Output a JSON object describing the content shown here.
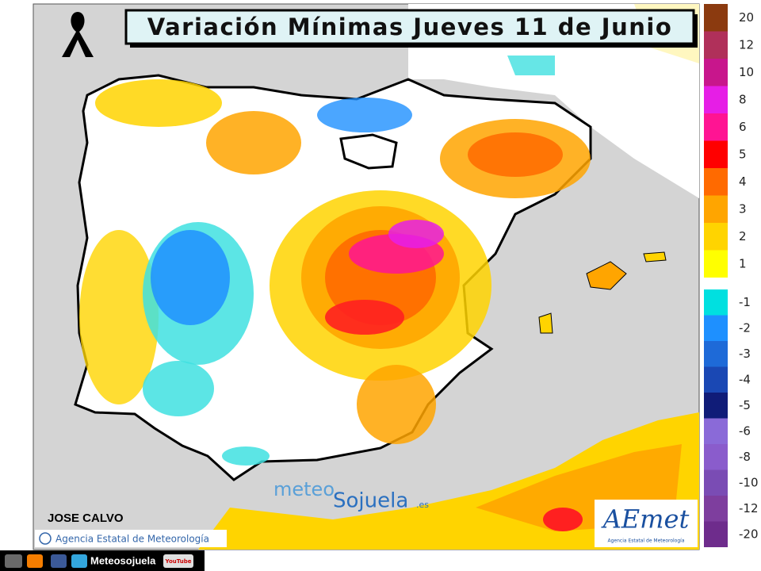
{
  "header": {
    "title": "Variación Mínimas Jueves 11 de Junio"
  },
  "author": "JOSE CALVO",
  "credit": "Agencia Estatal de Meteorología",
  "watermark": {
    "part1": "meteo",
    "part2": "Sojuela",
    "part3": ".es"
  },
  "logo": {
    "name": "AEmet",
    "subtitle": "Agencia Estatal de Meteorología"
  },
  "footer": {
    "site": "Meteosojuela",
    "youtube": "YouTube"
  },
  "legend_positive": [
    {
      "label": "20",
      "color": "#8b3a0f"
    },
    {
      "label": "12",
      "color": "#b0305a"
    },
    {
      "label": "10",
      "color": "#c8168c"
    },
    {
      "label": "8",
      "color": "#e61ee6"
    },
    {
      "label": "6",
      "color": "#ff1493"
    },
    {
      "label": "5",
      "color": "#ff0000"
    },
    {
      "label": "4",
      "color": "#ff6a00"
    },
    {
      "label": "3",
      "color": "#ffa500"
    },
    {
      "label": "2",
      "color": "#ffd400"
    },
    {
      "label": "1",
      "color": "#ffff00"
    }
  ],
  "legend_negative": [
    {
      "label": "-1",
      "color": "#00e0e0"
    },
    {
      "label": "-2",
      "color": "#1e90ff"
    },
    {
      "label": "-3",
      "color": "#1e6ad8"
    },
    {
      "label": "-4",
      "color": "#1a48b4"
    },
    {
      "label": "-5",
      "color": "#101c78"
    },
    {
      "label": "-6",
      "color": "#8a6ad8"
    },
    {
      "label": "-8",
      "color": "#8a5ccc"
    },
    {
      "label": "-10",
      "color": "#7a4cb4"
    },
    {
      "label": "-12",
      "color": "#7e3e9e"
    },
    {
      "label": "-20",
      "color": "#6e2c8c"
    }
  ]
}
